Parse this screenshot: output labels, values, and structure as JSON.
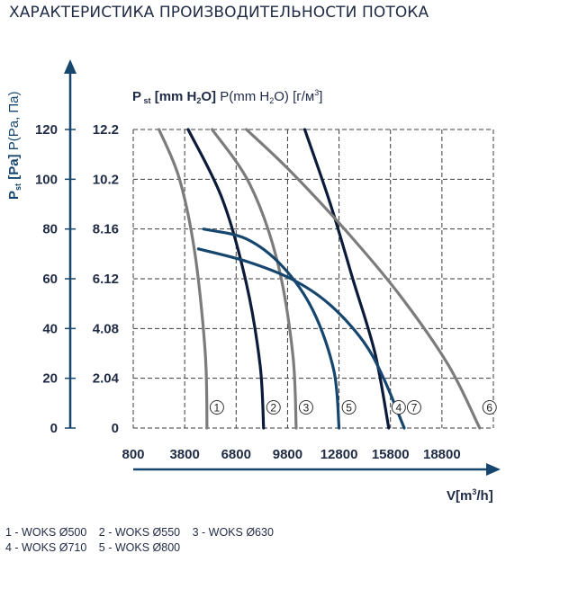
{
  "page_title": "ХАРАКТЕРИСТИКА ПРОИЗВОДИТЕЛЬНОСТИ ПОТОКА",
  "legend_lines": [
    [
      "1 - WOKS Ø500",
      "2 - WOKS Ø550",
      "3 - WOKS Ø630"
    ],
    [
      "4 - WOKS Ø710",
      "5 - WOKS Ø800"
    ]
  ],
  "chart_data": {
    "type": "line",
    "y_axis_label_parts": [
      "P",
      "st",
      "[Pa]",
      "P(Pa, Па)"
    ],
    "y2_axis_label_parts": [
      "P",
      "st",
      "[mm H",
      "2",
      "O]",
      "P(mm H",
      "2",
      "O) [г/м",
      "3",
      "]"
    ],
    "x_axis_label_parts": [
      "V[m",
      "3",
      "/h]"
    ],
    "y_ticks": [
      "0",
      "20",
      "40",
      "60",
      "80",
      "100",
      "120"
    ],
    "y2_ticks": [
      "2.04",
      "4.08",
      "6.12",
      "8.16",
      "10.2",
      "12.2"
    ],
    "x_ticks": [
      "800",
      "3800",
      "6800",
      "9800",
      "12800",
      "15800",
      "18800"
    ],
    "x_range": [
      800,
      21800
    ],
    "y_range": [
      0,
      120
    ],
    "grid": true,
    "colors": {
      "gray": "#7c7c7c",
      "navy": "#0d1b3a",
      "blue": "#16466e",
      "axis": "#16466e",
      "text": "#1f2a44"
    },
    "series": [
      {
        "name": "1",
        "color": "gray",
        "x": [
          2300,
          3500,
          4400,
          5000,
          5100
        ],
        "y": [
          120,
          100,
          70,
          30,
          0
        ]
      },
      {
        "name": "2",
        "color": "navy",
        "x": [
          4000,
          6000,
          7400,
          8200,
          8400
        ],
        "y": [
          120,
          92,
          58,
          25,
          0
        ]
      },
      {
        "name": "3",
        "color": "gray",
        "x": [
          5400,
          7600,
          9200,
          10100,
          10300
        ],
        "y": [
          120,
          98,
          67,
          30,
          0
        ]
      },
      {
        "name": "4",
        "color": "navy",
        "x": [
          10800,
          12300,
          13600,
          14900,
          15700
        ],
        "y": [
          120,
          90,
          60,
          30,
          0
        ]
      },
      {
        "name": "5",
        "color": "blue",
        "x": [
          4900,
          7400,
          9500,
          11300,
          12500,
          12800
        ],
        "y": [
          80,
          76,
          65,
          47,
          23,
          0
        ]
      },
      {
        "name": "6",
        "color": "gray",
        "x": [
          7400,
          10000,
          13500,
          16500,
          19200,
          21000
        ],
        "y": [
          120,
          103,
          77,
          52,
          25,
          0
        ]
      },
      {
        "name": "7",
        "color": "blue",
        "x": [
          4600,
          7400,
          10000,
          12200,
          14200,
          15400,
          16600
        ],
        "y": [
          72,
          67,
          60,
          50,
          35,
          20,
          0
        ]
      }
    ]
  }
}
